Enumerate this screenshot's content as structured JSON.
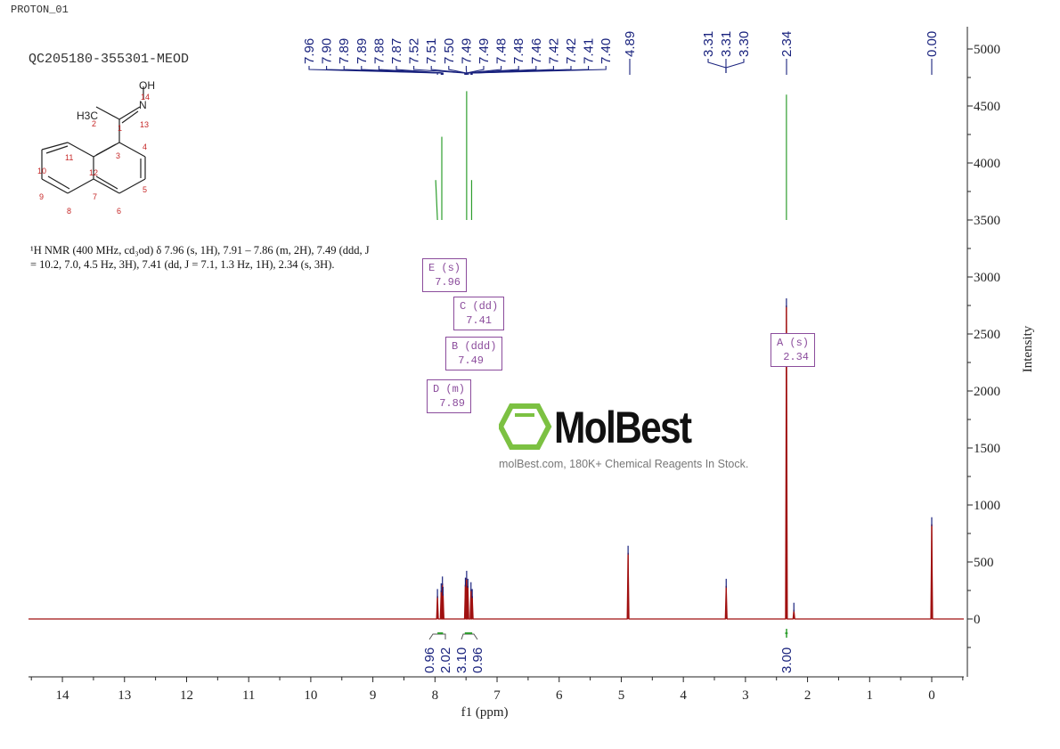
{
  "header": {
    "sample": "PROTON_01",
    "title": "QC205180-355301-MEOD"
  },
  "structure": {
    "labels": [
      "OH",
      "14",
      "H3C",
      "2",
      "1",
      "N",
      "13",
      "3",
      "4",
      "5",
      "6",
      "7",
      "8",
      "9",
      "10",
      "11",
      "12"
    ]
  },
  "description": "¹H NMR (400 MHz, cd₃od) δ 7.96 (s, 1H), 7.91 – 7.86 (m, 2H), 7.49 (ddd, J = 10.2, 7.0, 4.5 Hz, 3H), 7.41 (dd, J = 7.1, 1.3 Hz, 1H), 2.34 (s, 3H).",
  "watermark": {
    "logo": "MolBest",
    "text": "molBest.com, 180K+ Chemical Reagents In Stock."
  },
  "multiplets": [
    {
      "label": "E (s)",
      "value": "7.96"
    },
    {
      "label": "C (dd)",
      "value": "7.41"
    },
    {
      "label": "B (ddd)",
      "value": "7.49"
    },
    {
      "label": "D (m)",
      "value": "7.89"
    },
    {
      "label": "A (s)",
      "value": "2.34"
    }
  ],
  "chart_data": {
    "type": "line",
    "xlabel": "f1 (ppm)",
    "ylabel": "Intensity",
    "xlim": [
      14.6,
      -0.5
    ],
    "ylim": [
      -500,
      5200
    ],
    "x_ticks": [
      "14",
      "13",
      "12",
      "11",
      "10",
      "9",
      "8",
      "7",
      "6",
      "5",
      "4",
      "3",
      "2",
      "1",
      "0"
    ],
    "y_ticks": [
      "5000",
      "4500",
      "4000",
      "3500",
      "3000",
      "2500",
      "2000",
      "1500",
      "1000",
      "500",
      "0"
    ],
    "peak_labels_group1": [
      "7.96",
      "7.90",
      "7.89",
      "7.89",
      "7.88",
      "7.87",
      "7.52",
      "7.51",
      "7.50",
      "7.49",
      "7.49",
      "7.48",
      "7.48",
      "7.46",
      "7.42",
      "7.42",
      "7.41",
      "7.40"
    ],
    "peak_labels_other": [
      "4.89",
      "3.31",
      "3.31",
      "3.30",
      "2.34",
      "0.00"
    ],
    "peaks": [
      {
        "ppm": 7.96,
        "intensity": 200
      },
      {
        "ppm": 7.9,
        "intensity": 250
      },
      {
        "ppm": 7.88,
        "intensity": 310
      },
      {
        "ppm": 7.87,
        "intensity": 220
      },
      {
        "ppm": 7.51,
        "intensity": 300
      },
      {
        "ppm": 7.49,
        "intensity": 360
      },
      {
        "ppm": 7.47,
        "intensity": 290
      },
      {
        "ppm": 7.42,
        "intensity": 260
      },
      {
        "ppm": 7.4,
        "intensity": 200
      },
      {
        "ppm": 4.89,
        "intensity": 580
      },
      {
        "ppm": 3.31,
        "intensity": 290
      },
      {
        "ppm": 2.34,
        "intensity": 2750
      },
      {
        "ppm": 2.22,
        "intensity": 80
      },
      {
        "ppm": 0.0,
        "intensity": 830
      }
    ],
    "integrals": [
      {
        "ppm": 7.96,
        "value": "0.96"
      },
      {
        "ppm": 7.89,
        "value": "2.02"
      },
      {
        "ppm": 7.49,
        "value": "3.10"
      },
      {
        "ppm": 7.41,
        "value": "0.96"
      },
      {
        "ppm": 2.34,
        "value": "3.00"
      }
    ],
    "colors": {
      "spectrum": "#a01010",
      "labels": "#1a237e",
      "integral": "#2e9e2e",
      "annotation": "#8b4c9c"
    }
  }
}
